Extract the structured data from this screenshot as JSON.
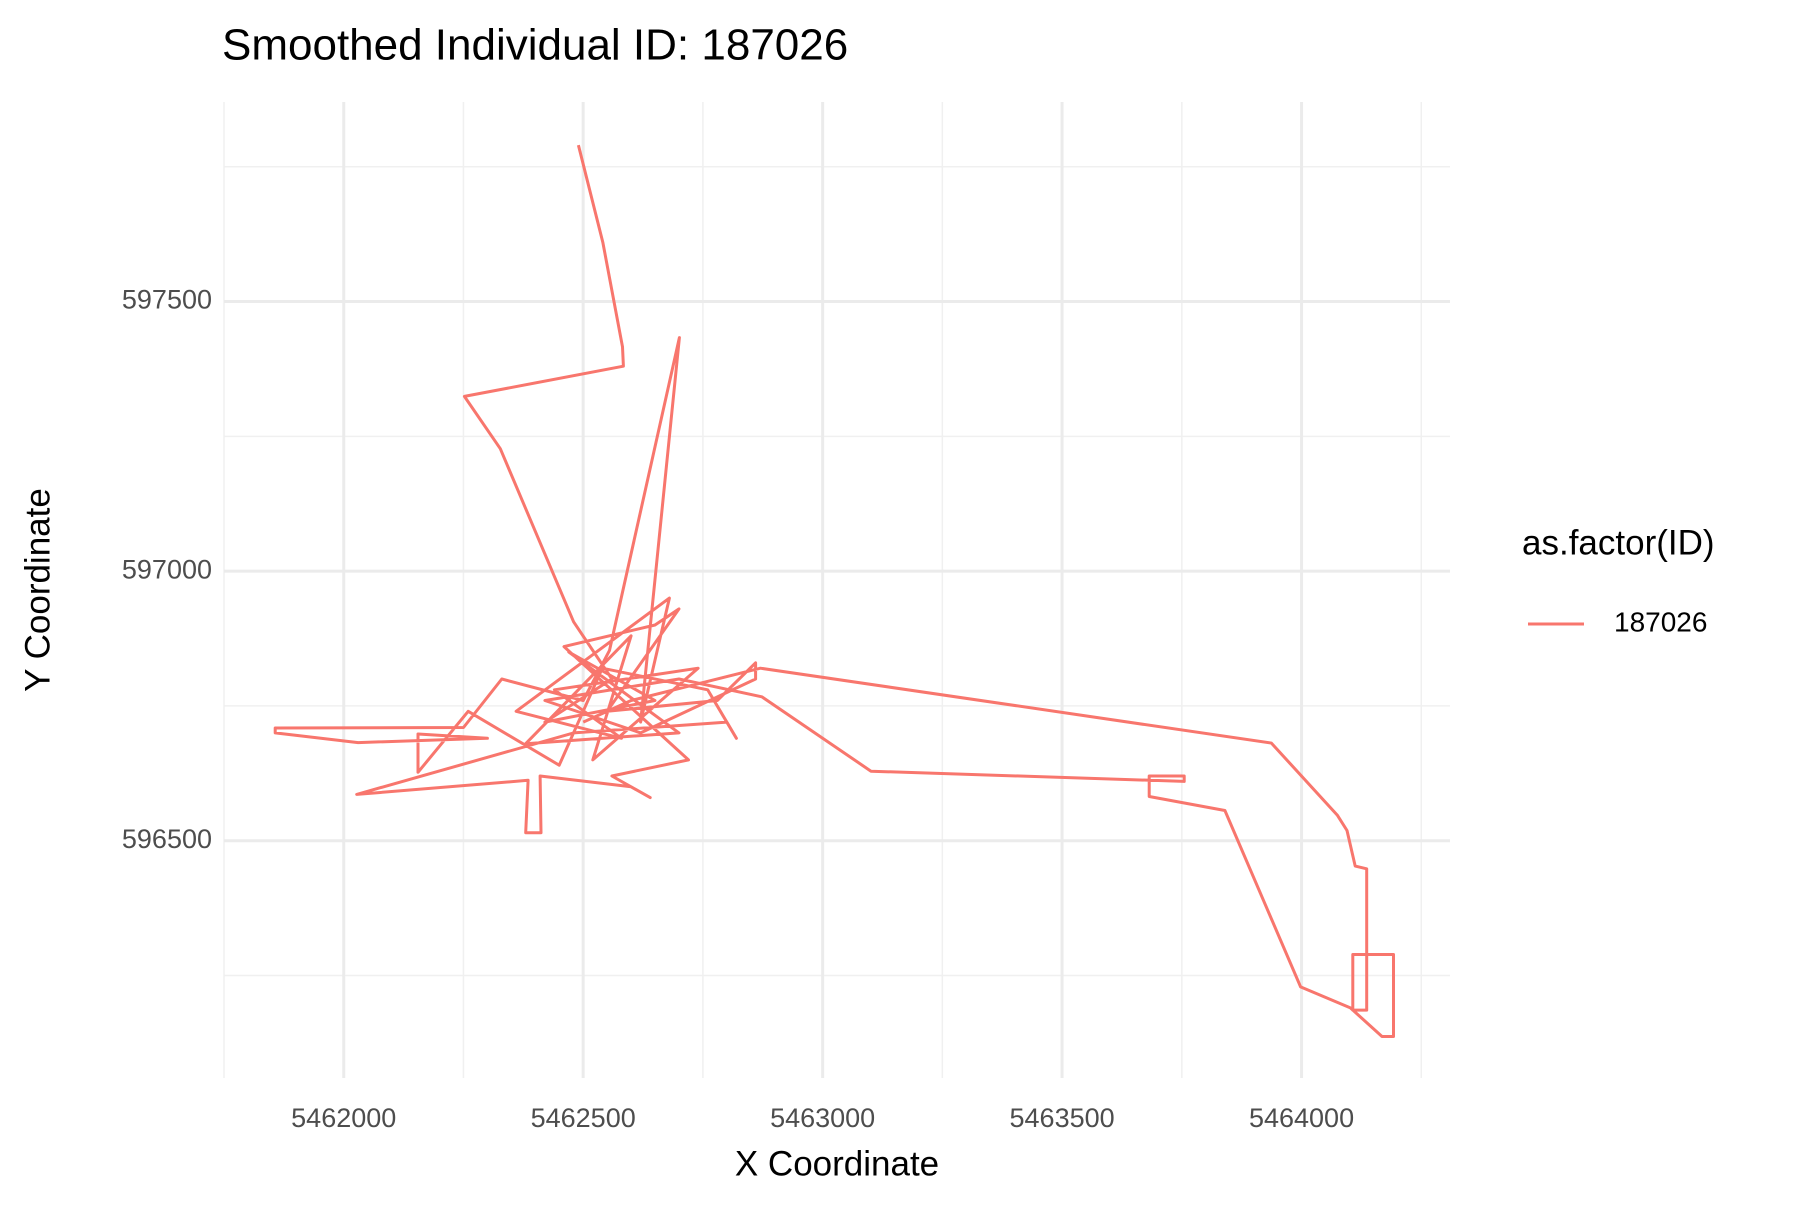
{
  "chart_data": {
    "type": "path",
    "title": "Smoothed Individual ID: 187026",
    "x_label": "X Coordinate",
    "y_label": "Y Coordinate",
    "legend_title": "as.factor(ID)",
    "legend_position": "right",
    "grid": true,
    "xlim": [
      5461750,
      5464310
    ],
    "ylim": [
      596060,
      597870
    ],
    "xticks": [
      5462000,
      5462500,
      5463000,
      5463500,
      5464000
    ],
    "yticks": [
      596500,
      597000,
      597500
    ],
    "x_minor_ticks": [
      5461750,
      5462250,
      5462750,
      5463250,
      5463750,
      5464250
    ],
    "y_minor_ticks": [
      596250,
      596750,
      597250,
      597750
    ],
    "x": [
      5462490,
      5462541,
      5462582,
      5462584,
      5462252,
      5462327,
      5462480,
      5462560,
      5462420,
      5462650,
      5462470,
      5462700,
      5462380,
      5462600,
      5462520,
      5462740,
      5462440,
      5462580,
      5462360,
      5462680,
      5462620,
      5462701,
      5462555,
      5462500,
      5462330,
      5462250,
      5461857,
      5461857,
      5462030,
      5462300,
      5462155,
      5462155,
      5462260,
      5462450,
      5462540,
      5462760,
      5462820,
      5462800,
      5462480,
      5462027,
      5462385,
      5462380,
      5462412,
      5462410,
      5462600,
      5462640,
      5462560,
      5462720,
      5462460,
      5462650,
      5462700,
      5462550,
      5462780,
      5462860,
      5462860,
      5462620,
      5462420,
      5462700,
      5462873,
      5463101,
      5463755,
      5463755,
      5463682,
      5463682,
      5463840,
      5463998,
      5464102,
      5464168,
      5464192,
      5464192,
      5464107,
      5464107,
      5464136,
      5464136,
      5464112,
      5464095,
      5464075,
      5463937,
      5462870,
      5462600,
      5462500
    ],
    "series": [
      {
        "name": "187026",
        "color": "#F8766D",
        "values": [
          597790,
          597610,
          597416,
          597380,
          597324,
          597227,
          596906,
          596800,
          596720,
          596760,
          596850,
          596700,
          596680,
          596880,
          596650,
          596820,
          596780,
          596690,
          596740,
          596950,
          596720,
          597433,
          596853,
          596760,
          596800,
          596710,
          596709,
          596700,
          596682,
          596690,
          596698,
          596627,
          596740,
          596640,
          596820,
          596780,
          596690,
          596720,
          596700,
          596586,
          596612,
          596515,
          596515,
          596620,
          596600,
          596580,
          596620,
          596650,
          596860,
          596900,
          596930,
          596740,
          596760,
          596830,
          596800,
          596700,
          596760,
          596800,
          596767,
          596629,
          596610,
          596620,
          596620,
          596582,
          596556,
          596229,
          596190,
          596137,
          596137,
          596289,
          596289,
          596186,
          596186,
          596448,
          596453,
          596519,
          596547,
          596681,
          596820,
          596760,
          596720
        ]
      }
    ]
  }
}
